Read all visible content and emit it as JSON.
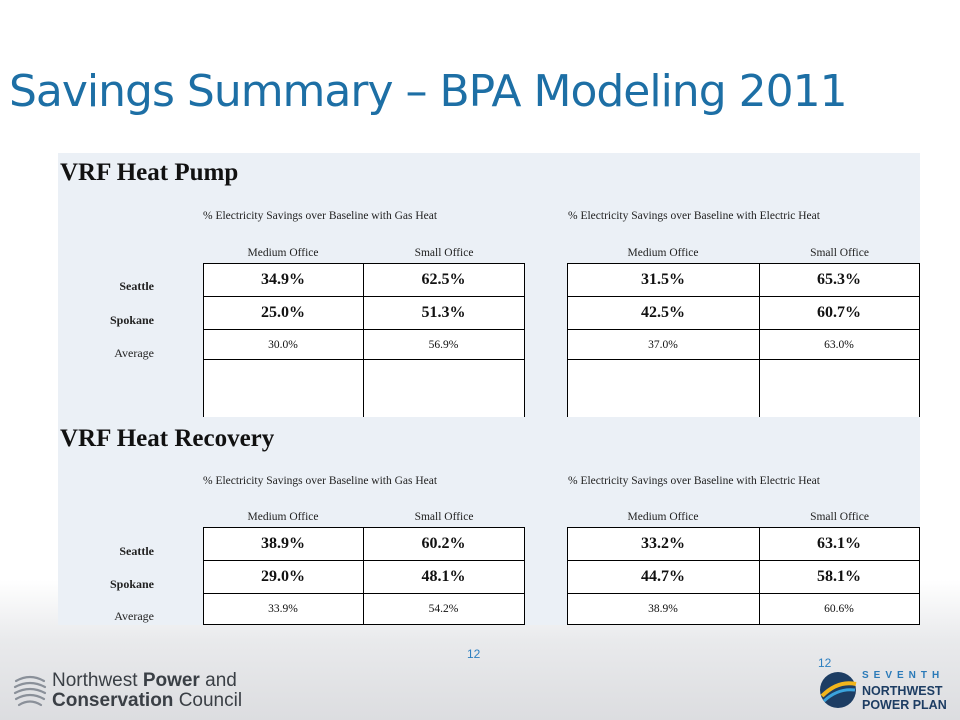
{
  "slide": {
    "title": "Savings Summary – BPA Modeling 2011",
    "page_number": "12",
    "page_number_right": "12"
  },
  "sections": [
    {
      "title": "VRF Heat Pump",
      "group_headers": [
        "% Electricity Savings over Baseline with Gas Heat",
        "% Electricity Savings over Baseline with Electric Heat"
      ],
      "columns": [
        "Medium Office",
        "Small Office",
        "Medium Office",
        "Small Office"
      ],
      "rows": [
        {
          "label": "Seattle",
          "values": [
            "34.9%",
            "62.5%",
            "31.5%",
            "65.3%"
          ]
        },
        {
          "label": "Spokane",
          "values": [
            "25.0%",
            "51.3%",
            "42.5%",
            "60.7%"
          ]
        },
        {
          "label": "Average",
          "values": [
            "30.0%",
            "56.9%",
            "37.0%",
            "63.0%"
          ]
        }
      ]
    },
    {
      "title": "VRF Heat Recovery",
      "group_headers": [
        "% Electricity Savings over Baseline with Gas Heat",
        "% Electricity Savings over Baseline with Electric Heat"
      ],
      "columns": [
        "Medium Office",
        "Small Office",
        "Medium Office",
        "Small Office"
      ],
      "rows": [
        {
          "label": "Seattle",
          "values": [
            "38.9%",
            "60.2%",
            "33.2%",
            "63.1%"
          ]
        },
        {
          "label": "Spokane",
          "values": [
            "29.0%",
            "48.1%",
            "44.7%",
            "58.1%"
          ]
        },
        {
          "label": "Average",
          "values": [
            "33.9%",
            "54.2%",
            "38.9%",
            "60.6%"
          ]
        }
      ]
    }
  ],
  "logos": {
    "left_line1_regular": "Northwest ",
    "left_line1_bold": "Power",
    "left_line1_end": " and",
    "left_line2_bold": "Conservation",
    "left_line2_end": " Council",
    "right_line1": "SEVENTH",
    "right_line2": "NORTHWEST",
    "right_line3": "POWER PLAN"
  },
  "colors": {
    "title": "#1d6fa5",
    "table_band": "#ebf0f6",
    "accent": "#2c7fc0"
  }
}
